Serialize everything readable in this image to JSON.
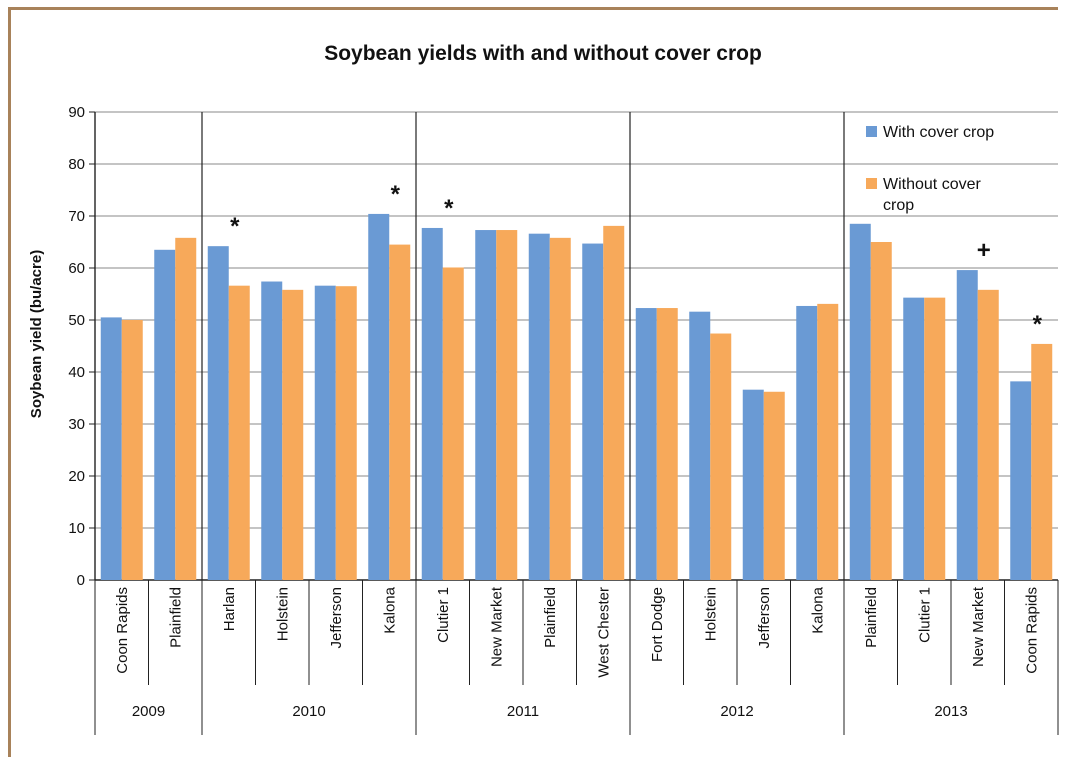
{
  "chart_data": {
    "type": "bar",
    "title": "Soybean yields with and without cover crop",
    "ylabel": "Soybean yield (bu/acre)",
    "xlabel": "",
    "ylim": [
      0,
      90
    ],
    "yticks": [
      0,
      10,
      20,
      30,
      40,
      50,
      60,
      70,
      80,
      90
    ],
    "grid": true,
    "legend_position": "top-right",
    "colors": {
      "with": "#6a9ad4",
      "without": "#f7a95a"
    },
    "groups": [
      {
        "label": "2009",
        "start": 0,
        "count": 2
      },
      {
        "label": "2010",
        "start": 2,
        "count": 4
      },
      {
        "label": "2011",
        "start": 6,
        "count": 4
      },
      {
        "label": "2012",
        "start": 10,
        "count": 4
      },
      {
        "label": "2013",
        "start": 14,
        "count": 4
      }
    ],
    "categories": [
      "Coon Rapids",
      "Plainfield",
      "Harlan",
      "Holstein",
      "Jefferson",
      "Kalona",
      "Clutier 1",
      "New Market",
      "Plainfield",
      "West Chester",
      "Fort Dodge",
      "Holstein",
      "Jefferson",
      "Kalona",
      "Plainfield",
      "Clutier 1",
      "New Market",
      "Coon Rapids"
    ],
    "series": [
      {
        "name": "With cover crop",
        "values": [
          50.5,
          63.5,
          64.2,
          57.4,
          56.6,
          70.4,
          67.7,
          67.3,
          66.6,
          64.7,
          52.3,
          51.6,
          36.6,
          52.7,
          68.5,
          54.3,
          59.6,
          38.2
        ]
      },
      {
        "name": "Without cover crop",
        "values": [
          50.0,
          65.8,
          56.6,
          55.8,
          56.5,
          64.5,
          60.1,
          67.3,
          65.8,
          68.1,
          52.3,
          47.4,
          36.2,
          53.1,
          65.0,
          54.3,
          55.8,
          45.4
        ]
      }
    ],
    "annotations": [
      {
        "category_index": 2,
        "text": "*"
      },
      {
        "category_index": 5,
        "text": "*"
      },
      {
        "category_index": 6,
        "text": "*"
      },
      {
        "category_index": 16,
        "text": "+"
      },
      {
        "category_index": 17,
        "text": "*"
      }
    ]
  }
}
